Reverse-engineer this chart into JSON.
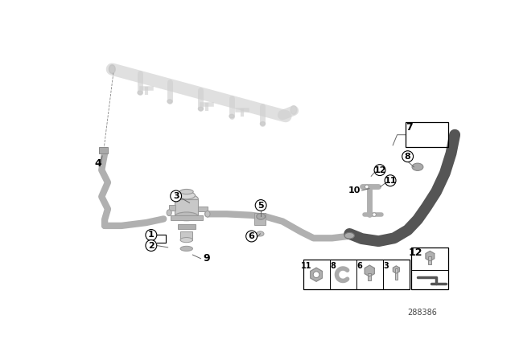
{
  "bg_color": "#ffffff",
  "diagram_number": "288386",
  "rail_color": "#d0d0d0",
  "rail_alpha": 0.65,
  "tube_light": "#b0b0b0",
  "tube_dark": "#555555",
  "pump_color": "#c0c0c0",
  "bracket_color": "#b8b8b8",
  "label_color": "#000000",
  "leader_color": "#666666",
  "box_edge": "#000000"
}
